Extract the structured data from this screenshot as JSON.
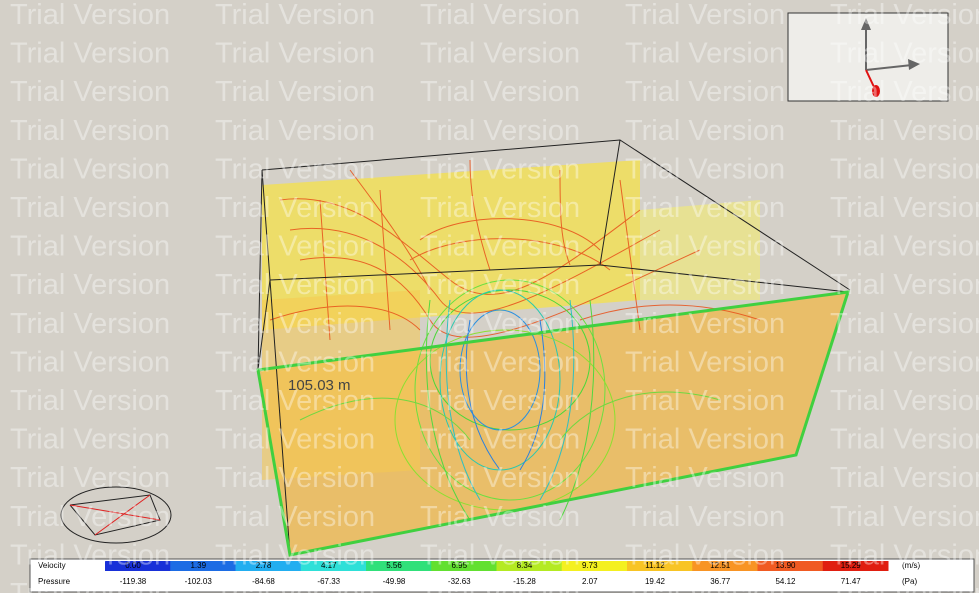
{
  "watermark": "Trial Version",
  "scene": {
    "dimension_label": "105.03 m"
  },
  "legend": {
    "colors": [
      "#1830d8",
      "#1c6ce4",
      "#22aef0",
      "#2ee0d8",
      "#30e07a",
      "#62e030",
      "#b4ea22",
      "#f4f020",
      "#f8c424",
      "#f89424",
      "#f05a22",
      "#e01e10"
    ],
    "rows": [
      {
        "name": "Velocity",
        "unit": "(m/s)",
        "values": [
          "0.00",
          "1.39",
          "2.78",
          "4.17",
          "5.56",
          "6.95",
          "8.34",
          "9.73",
          "11.12",
          "12.51",
          "13.90",
          "15.29"
        ]
      },
      {
        "name": "Pressure",
        "unit": "(Pa)",
        "values": [
          "-119.38",
          "-102.03",
          "-84.68",
          "-67.33",
          "-49.98",
          "-32.63",
          "-15.28",
          "2.07",
          "19.42",
          "36.77",
          "54.12",
          "71.47"
        ]
      }
    ]
  }
}
